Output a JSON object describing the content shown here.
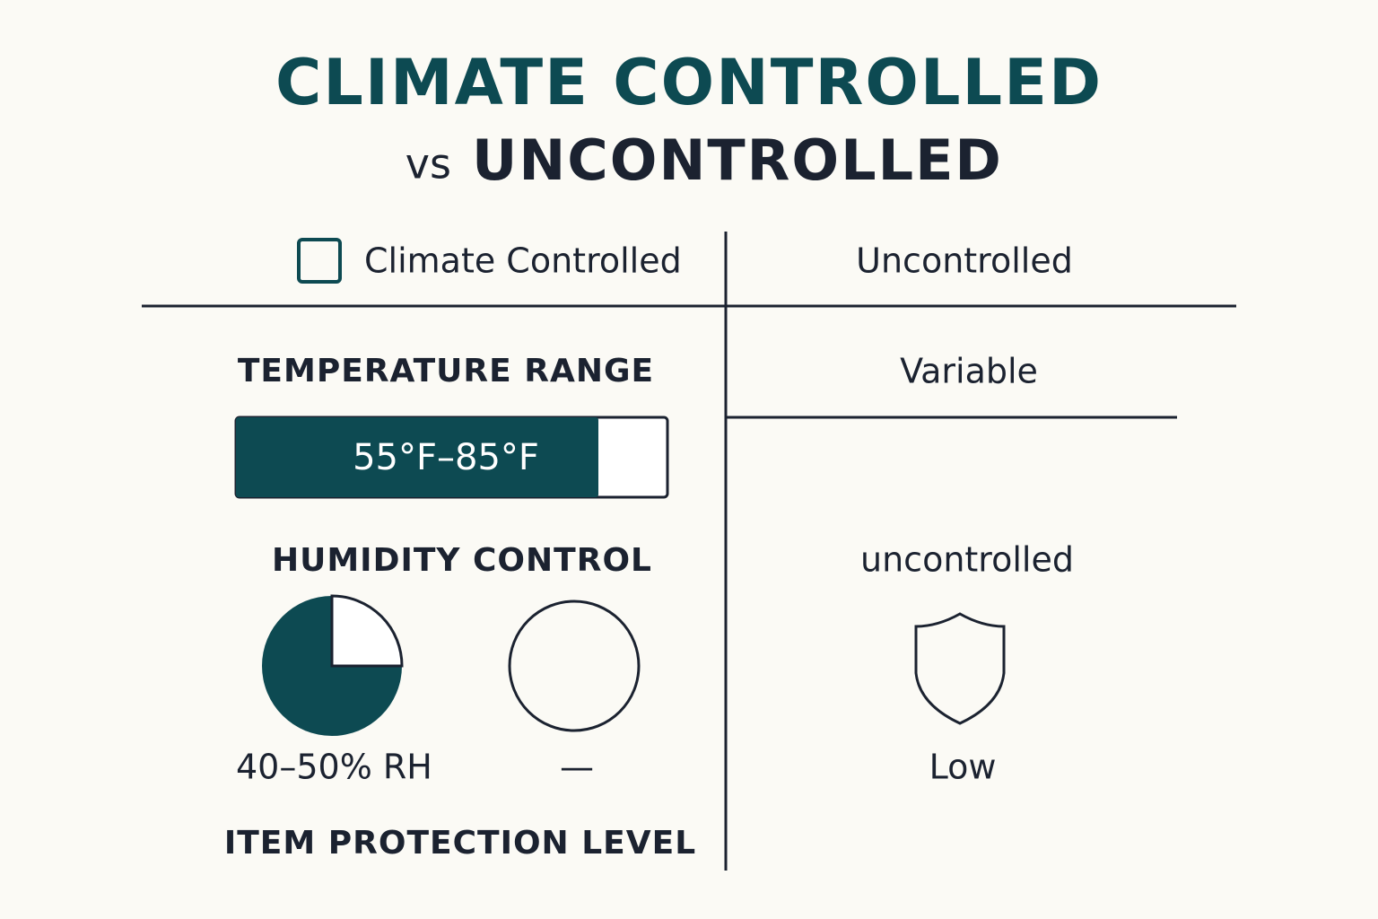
{
  "header": {
    "title": "CLIMATE CONTROLLED",
    "subtitle_prefix": "vs",
    "subtitle": "UNCONTROLLED"
  },
  "table": {
    "columns": [
      "Climate Controlled",
      "Uncontrolled"
    ],
    "rows": [
      {
        "label": "TEMPERATURE RANGE",
        "climate": "55°F–85°F",
        "uncontrolled": "Variable"
      },
      {
        "label": "HUMIDITY CONTROL",
        "climate": "40–50% RH",
        "climate_alt": "—",
        "uncontrolled": "uncontrolled"
      },
      {
        "label": "ITEM PROTECTION LEVEL",
        "uncontrolled": "Low"
      }
    ]
  }
}
